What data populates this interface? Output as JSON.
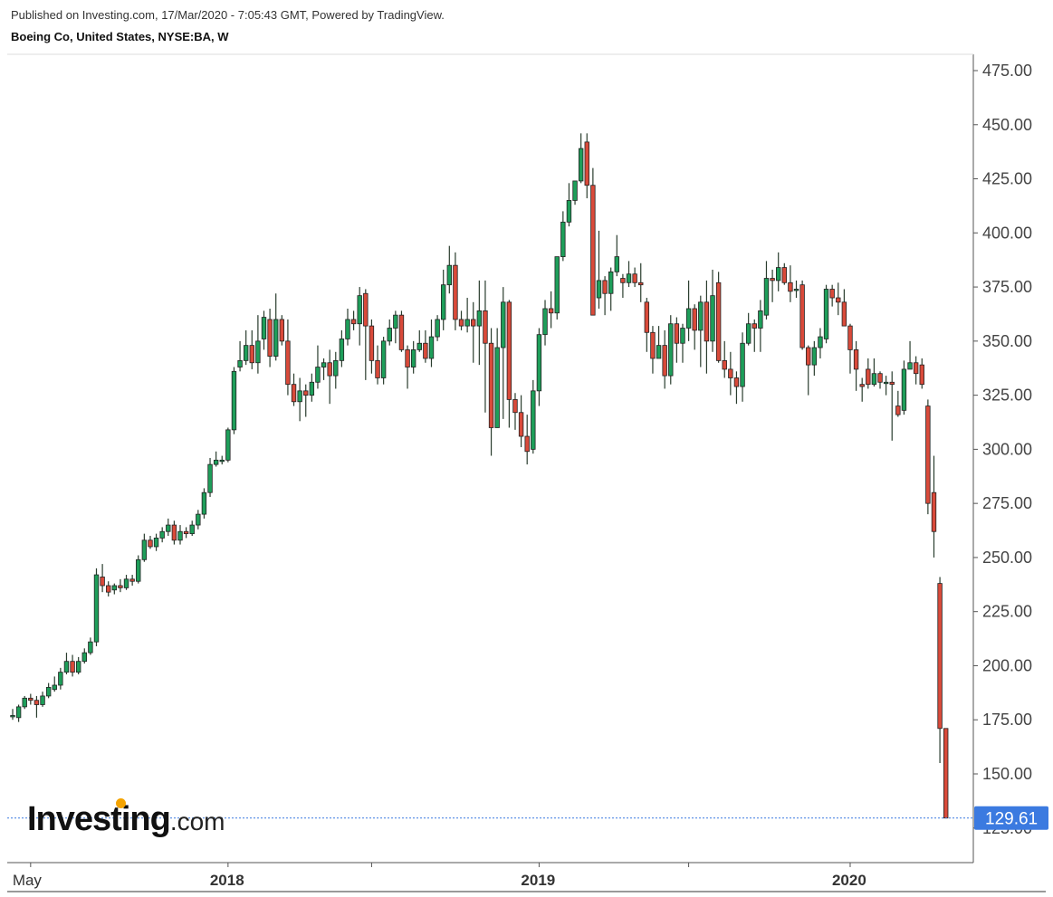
{
  "header": {
    "published": "Published on Investing.com, 17/Mar/2020 - 7:05:43 GMT, Powered by TradingView.",
    "instrument": "Boeing Co, United States, NYSE:BA, W"
  },
  "logo": {
    "brand": "Investing",
    "suffix": ".com",
    "dot_color": "#f4a300"
  },
  "colors": {
    "up": "#1e9e5a",
    "down": "#d94a3a",
    "wick": "#2a3d2e",
    "price_line": "#3b7ae0",
    "price_tag": "#3b7ae0"
  },
  "last_price": {
    "value": 129.61,
    "label": "129.61"
  },
  "chart_data": {
    "type": "candlestick",
    "ylim": [
      110,
      485
    ],
    "y_ticks": [
      125,
      150,
      175,
      200,
      225,
      250,
      275,
      300,
      325,
      350,
      375,
      400,
      425,
      450,
      475
    ],
    "y_tick_labels": [
      "125.00",
      "150.00",
      "175.00",
      "200.00",
      "225.00",
      "250.00",
      "275.00",
      "300.00",
      "325.00",
      "350.00",
      "375.00",
      "400.00",
      "425.00",
      "450.00",
      "475.00"
    ],
    "x_labels": [
      {
        "label": "May",
        "week": 3,
        "bold": false
      },
      {
        "label": "2018",
        "week": 36,
        "bold": true
      },
      {
        "label": "2019",
        "week": 88,
        "bold": true
      },
      {
        "label": "2020",
        "week": 140,
        "bold": true
      }
    ],
    "x_ticks": [
      3,
      36,
      60,
      88,
      113,
      140
    ],
    "candles": [
      [
        177,
        177,
        180,
        175
      ],
      [
        176,
        181,
        182,
        174
      ],
      [
        181,
        185,
        186,
        180
      ],
      [
        185,
        184,
        187,
        182
      ],
      [
        184,
        182,
        186,
        176
      ],
      [
        182,
        186,
        188,
        181
      ],
      [
        186,
        190,
        192,
        185
      ],
      [
        189,
        191,
        195,
        188
      ],
      [
        191,
        197,
        199,
        189
      ],
      [
        197,
        202,
        206,
        196
      ],
      [
        202,
        197,
        205,
        195
      ],
      [
        197,
        202,
        204,
        196
      ],
      [
        202,
        206,
        208,
        201
      ],
      [
        206,
        211,
        213,
        205
      ],
      [
        211,
        242,
        245,
        209
      ],
      [
        241,
        237,
        247,
        234
      ],
      [
        237,
        234,
        239,
        232
      ],
      [
        235,
        237,
        238,
        233
      ],
      [
        237,
        236,
        240,
        234
      ],
      [
        236,
        240,
        242,
        235
      ],
      [
        240,
        239,
        242,
        237
      ],
      [
        239,
        249,
        251,
        238
      ],
      [
        249,
        258,
        261,
        248
      ],
      [
        258,
        255,
        260,
        254
      ],
      [
        255,
        259,
        261,
        253
      ],
      [
        259,
        262,
        264,
        257
      ],
      [
        262,
        265,
        268,
        260
      ],
      [
        265,
        258,
        267,
        256
      ],
      [
        258,
        262,
        265,
        256
      ],
      [
        262,
        261,
        264,
        259
      ],
      [
        261,
        265,
        267,
        260
      ],
      [
        265,
        270,
        272,
        263
      ],
      [
        270,
        280,
        282,
        268
      ],
      [
        280,
        293,
        296,
        278
      ],
      [
        293,
        295,
        299,
        292
      ],
      [
        295,
        295,
        297,
        293
      ],
      [
        295,
        309,
        310,
        294
      ],
      [
        309,
        336,
        338,
        307
      ],
      [
        338,
        341,
        350,
        336
      ],
      [
        341,
        348,
        355,
        339
      ],
      [
        348,
        340,
        355,
        337
      ],
      [
        340,
        350,
        362,
        335
      ],
      [
        351,
        361,
        364,
        346
      ],
      [
        360,
        343,
        365,
        338
      ],
      [
        343,
        360,
        372,
        341
      ],
      [
        360,
        350,
        362,
        348
      ],
      [
        350,
        330,
        360,
        325
      ],
      [
        330,
        322,
        335,
        320
      ],
      [
        322,
        327,
        333,
        313
      ],
      [
        327,
        325,
        330,
        315
      ],
      [
        325,
        331,
        335,
        322
      ],
      [
        331,
        338,
        348,
        328
      ],
      [
        338,
        340,
        342,
        332
      ],
      [
        340,
        334,
        346,
        321
      ],
      [
        334,
        341,
        345,
        328
      ],
      [
        341,
        351,
        355,
        338
      ],
      [
        351,
        360,
        365,
        348
      ],
      [
        360,
        358,
        364,
        355
      ],
      [
        358,
        371,
        375,
        348
      ],
      [
        372,
        357,
        374,
        332
      ],
      [
        357,
        341,
        360,
        335
      ],
      [
        341,
        333,
        348,
        330
      ],
      [
        333,
        350,
        352,
        330
      ],
      [
        350,
        356,
        360,
        348
      ],
      [
        356,
        362,
        364,
        349
      ],
      [
        362,
        346,
        364,
        345
      ],
      [
        346,
        338,
        348,
        328
      ],
      [
        338,
        346,
        350,
        335
      ],
      [
        346,
        349,
        355,
        345
      ],
      [
        349,
        342,
        355,
        340
      ],
      [
        342,
        352,
        360,
        338
      ],
      [
        352,
        360,
        362,
        350
      ],
      [
        360,
        376,
        383,
        355
      ],
      [
        376,
        385,
        394,
        372
      ],
      [
        385,
        360,
        391,
        355
      ],
      [
        360,
        357,
        364,
        355
      ],
      [
        357,
        360,
        370,
        354
      ],
      [
        360,
        357,
        368,
        340
      ],
      [
        357,
        364,
        378,
        339
      ],
      [
        364,
        349,
        378,
        317
      ],
      [
        349,
        310,
        356,
        297
      ],
      [
        310,
        347,
        356,
        310
      ],
      [
        347,
        368,
        375,
        314
      ],
      [
        368,
        323,
        369,
        310
      ],
      [
        323,
        317,
        326,
        309
      ],
      [
        317,
        306,
        325,
        301
      ],
      [
        306,
        299,
        316,
        293
      ],
      [
        300,
        327,
        332,
        298
      ],
      [
        327,
        353,
        356,
        320
      ],
      [
        353,
        365,
        369,
        348
      ],
      [
        365,
        363,
        373,
        356
      ],
      [
        363,
        389,
        389,
        360
      ],
      [
        389,
        405,
        410,
        387
      ],
      [
        405,
        415,
        423,
        403
      ],
      [
        415,
        424,
        424,
        413
      ],
      [
        424,
        439,
        446,
        423
      ],
      [
        442,
        422,
        446,
        416
      ],
      [
        422,
        362,
        430,
        362
      ],
      [
        370,
        378,
        401,
        365
      ],
      [
        378,
        372,
        380,
        362
      ],
      [
        372,
        382,
        384,
        364
      ],
      [
        382,
        389,
        399,
        380
      ],
      [
        379,
        377,
        381,
        370
      ],
      [
        377,
        381,
        387,
        375
      ],
      [
        381,
        377,
        384,
        375
      ],
      [
        377,
        376,
        386,
        368
      ],
      [
        368,
        354,
        370,
        345
      ],
      [
        354,
        342,
        357,
        335
      ],
      [
        342,
        348,
        357,
        345
      ],
      [
        348,
        334,
        355,
        328
      ],
      [
        334,
        358,
        362,
        330
      ],
      [
        358,
        349,
        361,
        340
      ],
      [
        349,
        356,
        358,
        340
      ],
      [
        356,
        365,
        378,
        350
      ],
      [
        365,
        355,
        367,
        346
      ],
      [
        355,
        368,
        371,
        338
      ],
      [
        368,
        350,
        378,
        335
      ],
      [
        350,
        371,
        383,
        345
      ],
      [
        377,
        341,
        382,
        340
      ],
      [
        341,
        337,
        350,
        333
      ],
      [
        337,
        333,
        345,
        325
      ],
      [
        333,
        329,
        336,
        321
      ],
      [
        329,
        349,
        354,
        322
      ],
      [
        349,
        358,
        363,
        348
      ],
      [
        358,
        356,
        360,
        345
      ],
      [
        356,
        364,
        369,
        345
      ],
      [
        362,
        379,
        387,
        360
      ],
      [
        379,
        378,
        383,
        368
      ],
      [
        378,
        384,
        391,
        373
      ],
      [
        384,
        377,
        386,
        376
      ],
      [
        377,
        373,
        385,
        368
      ],
      [
        374,
        374,
        378,
        370
      ],
      [
        376,
        347,
        378,
        346
      ],
      [
        347,
        339,
        348,
        325
      ],
      [
        339,
        347,
        350,
        334
      ],
      [
        347,
        352,
        356,
        342
      ],
      [
        351,
        374,
        376,
        349
      ],
      [
        374,
        370,
        376,
        366
      ],
      [
        370,
        368,
        377,
        362
      ],
      [
        368,
        357,
        374,
        358
      ],
      [
        357,
        346,
        358,
        335
      ],
      [
        346,
        337,
        350,
        327
      ],
      [
        330,
        329,
        333,
        322
      ],
      [
        337,
        330,
        342,
        328
      ],
      [
        330,
        335,
        342,
        329
      ],
      [
        335,
        331,
        336,
        328
      ],
      [
        331,
        331,
        334,
        325
      ],
      [
        331,
        330,
        336,
        304
      ],
      [
        320,
        316,
        327,
        315
      ],
      [
        318,
        337,
        341,
        316
      ],
      [
        337,
        340,
        350,
        337
      ],
      [
        340,
        335,
        343,
        330
      ],
      [
        339,
        330,
        342,
        328
      ],
      [
        320,
        275,
        323,
        270
      ],
      [
        280,
        262,
        297,
        250
      ],
      [
        238,
        171,
        241,
        155
      ],
      [
        171,
        129.61,
        171,
        129.61
      ]
    ]
  }
}
